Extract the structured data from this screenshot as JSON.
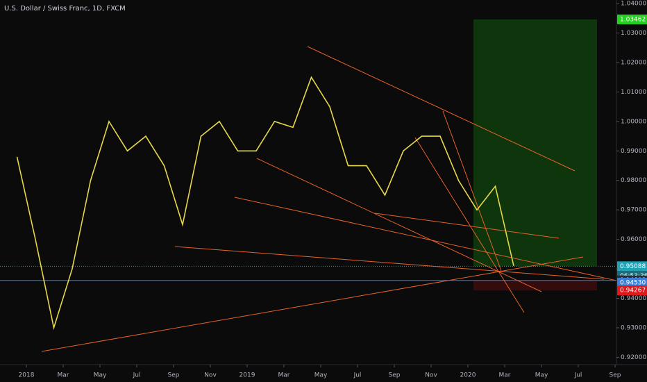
{
  "chart_data": {
    "type": "line",
    "title": "U.S. Dollar / Swiss Franc, 1D, FXCM",
    "x": [
      "2017-12",
      "2018-01",
      "2018-02",
      "2018-03",
      "2018-04",
      "2018-05",
      "2018-06",
      "2018-07",
      "2018-08",
      "2018-09",
      "2018-10",
      "2018-11",
      "2018-12",
      "2019-01",
      "2019-02",
      "2019-03",
      "2019-04",
      "2019-05",
      "2019-06",
      "2019-07",
      "2019-08",
      "2019-09",
      "2019-10",
      "2019-11",
      "2019-12",
      "2020-01",
      "2020-02",
      "2020-03"
    ],
    "series": [
      {
        "color": "#e6d84a",
        "values": [
          0.988,
          0.96,
          0.93,
          0.95,
          0.98,
          1.0,
          0.99,
          0.995,
          0.985,
          0.965,
          0.995,
          1.0,
          0.99,
          0.99,
          1.0,
          0.998,
          1.015,
          1.005,
          0.985,
          0.985,
          0.975,
          0.99,
          0.995,
          0.995,
          0.98,
          0.97,
          0.978,
          0.951
        ]
      }
    ],
    "ylim": [
      0.9175,
      1.0412
    ],
    "yticks": [
      {
        "value": 0.92,
        "label": "0.92000"
      },
      {
        "value": 0.93,
        "label": "0.93000"
      },
      {
        "value": 0.94,
        "label": "0.94000"
      },
      {
        "value": 0.95,
        "label": "0.95000"
      },
      {
        "value": 0.96,
        "label": "0.96000"
      },
      {
        "value": 0.97,
        "label": "0.97000"
      },
      {
        "value": 0.98,
        "label": "0.98000"
      },
      {
        "value": 0.99,
        "label": "0.99000"
      },
      {
        "value": 1.0,
        "label": "1.00000"
      },
      {
        "value": 1.01,
        "label": "1.01000"
      },
      {
        "value": 1.02,
        "label": "1.02000"
      },
      {
        "value": 1.03,
        "label": "1.03000"
      },
      {
        "value": 1.04,
        "label": "1.04000"
      }
    ],
    "xticks": [
      {
        "value": "2018-01",
        "label": "2018"
      },
      {
        "value": "2018-03",
        "label": "Mar"
      },
      {
        "value": "2018-05",
        "label": "May"
      },
      {
        "value": "2018-07",
        "label": "Jul"
      },
      {
        "value": "2018-09",
        "label": "Sep"
      },
      {
        "value": "2018-11",
        "label": "Nov"
      },
      {
        "value": "2019-01",
        "label": "2019"
      },
      {
        "value": "2019-03",
        "label": "Mar"
      },
      {
        "value": "2019-05",
        "label": "May"
      },
      {
        "value": "2019-07",
        "label": "Jul"
      },
      {
        "value": "2019-09",
        "label": "Sep"
      },
      {
        "value": "2019-11",
        "label": "Nov"
      },
      {
        "value": "2020-01",
        "label": "2020"
      },
      {
        "value": "2020-03",
        "label": "Mar"
      },
      {
        "value": "2020-05",
        "label": "May"
      },
      {
        "value": "2020-07",
        "label": "Jul"
      },
      {
        "value": "2020-09",
        "label": "Sep"
      }
    ],
    "price_labels": [
      {
        "value": 1.03462,
        "label": "1.03462",
        "color": "#22d31e"
      },
      {
        "value": 0.95088,
        "label": "0.95088",
        "color": "#1fa3b8"
      },
      {
        "value": 0.94608,
        "label": "0.94608",
        "color": "#2a2e39"
      },
      {
        "value": 0.9453,
        "label": "0.94530",
        "color": "#3c7fd6"
      },
      {
        "value": 0.94267,
        "label": "0.94267",
        "color": "#e0171b"
      }
    ],
    "countdown": "06:53:36"
  }
}
